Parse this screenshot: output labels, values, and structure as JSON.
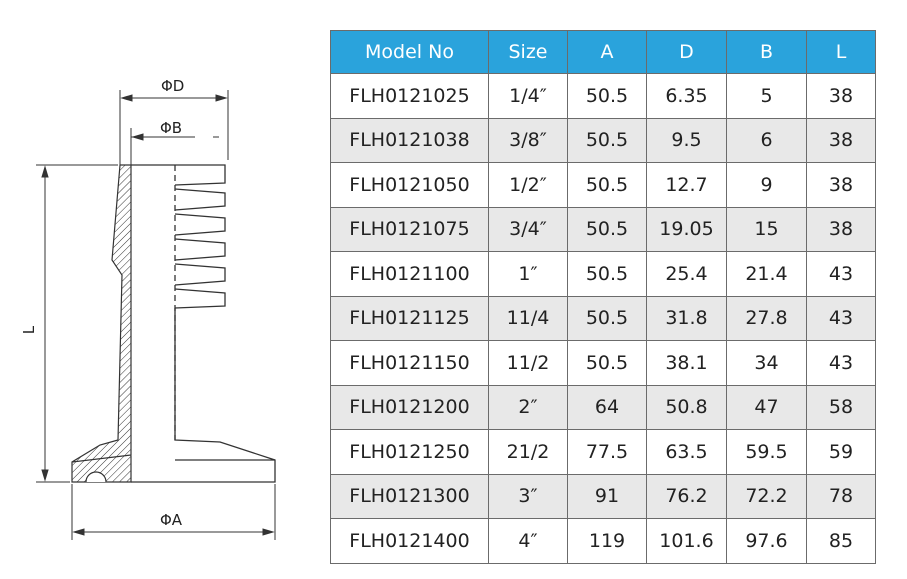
{
  "drawing": {
    "labels": {
      "phi_d": "ΦD",
      "phi_b": "ΦB",
      "length": "L",
      "phi_a": "ΦA"
    }
  },
  "table": {
    "headers": [
      "Model No",
      "Size",
      "A",
      "D",
      "B",
      "L"
    ],
    "header_color": "#2aa3dc",
    "rows": [
      [
        "FLH0121025",
        "1/4″",
        "50.5",
        "6.35",
        "5",
        "38"
      ],
      [
        "FLH0121038",
        "3/8″",
        "50.5",
        "9.5",
        "6",
        "38"
      ],
      [
        "FLH0121050",
        "1/2″",
        "50.5",
        "12.7",
        "9",
        "38"
      ],
      [
        "FLH0121075",
        "3/4″",
        "50.5",
        "19.05",
        "15",
        "38"
      ],
      [
        "FLH0121100",
        "1″",
        "50.5",
        "25.4",
        "21.4",
        "43"
      ],
      [
        "FLH0121125",
        "11/4",
        "50.5",
        "31.8",
        "27.8",
        "43"
      ],
      [
        "FLH0121150",
        "11/2",
        "50.5",
        "38.1",
        "34",
        "43"
      ],
      [
        "FLH0121200",
        "2″",
        "64",
        "50.8",
        "47",
        "58"
      ],
      [
        "FLH0121250",
        "21/2",
        "77.5",
        "63.5",
        "59.5",
        "59"
      ],
      [
        "FLH0121300",
        "3″",
        "91",
        "76.2",
        "72.2",
        "78"
      ],
      [
        "FLH0121400",
        "4″",
        "119",
        "101.6",
        "97.6",
        "85"
      ]
    ]
  }
}
